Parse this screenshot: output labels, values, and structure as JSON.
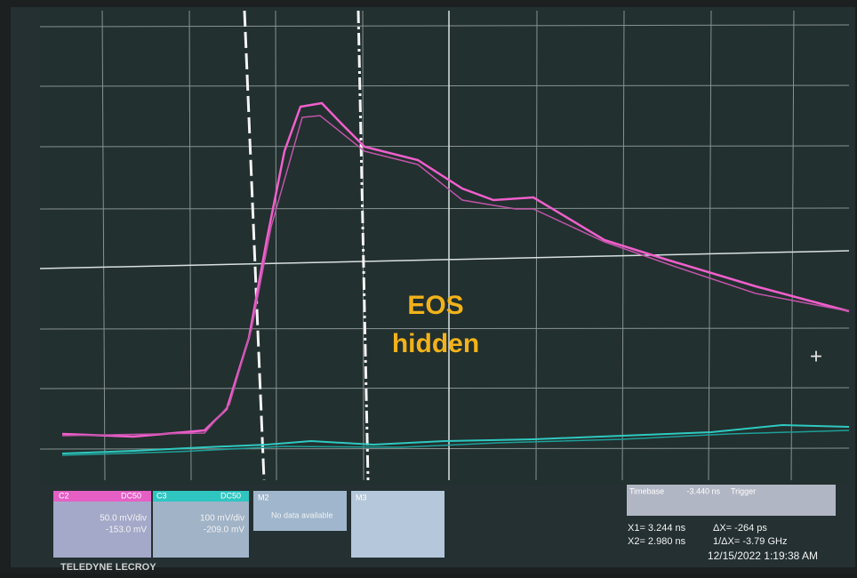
{
  "overlay": {
    "line1": "EOS",
    "line2": "hidden"
  },
  "channels": [
    {
      "name": "C2",
      "coupling": "DC50",
      "scale": "50.0 mV/div",
      "offset": "-153.0 mV"
    },
    {
      "name": "C3",
      "coupling": "DC50",
      "scale": "100 mV/div",
      "offset": "-209.0 mV"
    },
    {
      "name": "M2",
      "message": "No data available"
    },
    {
      "name": "M3"
    }
  ],
  "timebase": {
    "label": "Timebase",
    "value": "-3.440 ns",
    "trigger": "Trigger"
  },
  "cursors": {
    "x1": "X1= 3.244 ns",
    "dx": "ΔX= -264 ps",
    "x2": "X2= 2.980 ns",
    "inv": "1/ΔX= -3.79 GHz"
  },
  "datetime": "12/15/2022 1:19:38 AM",
  "brand": "TELEDYNE LECROY"
}
